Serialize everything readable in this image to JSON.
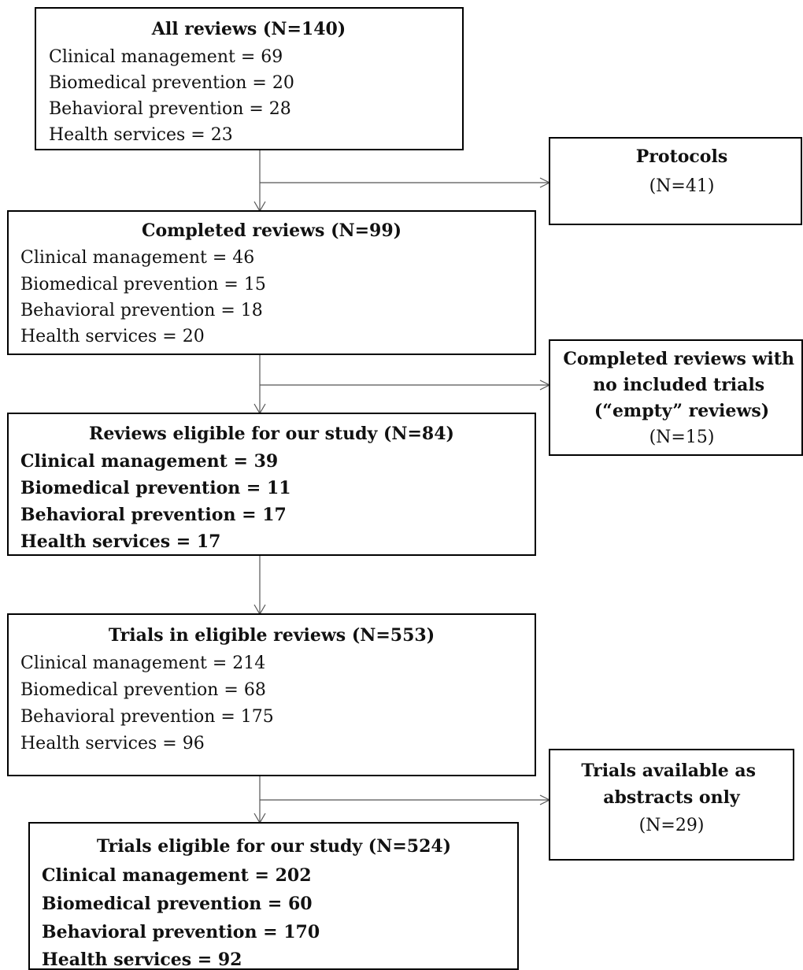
{
  "nodes": [
    {
      "title": "All reviews (N=140)",
      "lines": [
        "Clinical management = 69",
        "Biomedical prevention = 20",
        "Behavioral prevention = 28",
        "Health services = 23"
      ]
    },
    {
      "title": "Protocols",
      "lines": [
        "(N=41)"
      ]
    },
    {
      "title": "Completed reviews (N=99)",
      "lines": [
        "Clinical management = 46",
        "Biomedical prevention = 15",
        "Behavioral prevention = 18",
        "Health services = 20"
      ]
    },
    {
      "title": "Completed reviews with no included trials (“empty” reviews)",
      "lines": [
        "(N=15)"
      ]
    },
    {
      "title": "Reviews eligible for our study (N=84)",
      "lines": [
        "Clinical management = 39",
        "Biomedical prevention = 11",
        "Behavioral prevention = 17",
        "Health services = 17"
      ]
    },
    {
      "title": "Trials in eligible reviews (N=553)",
      "lines": [
        "Clinical management = 214",
        "Biomedical prevention = 68",
        "Behavioral prevention = 175",
        "Health services = 96"
      ]
    },
    {
      "title": "Trials available as abstracts only",
      "lines": [
        "(N=29)"
      ]
    },
    {
      "title": "Trials eligible for our study (N=524)",
      "lines": [
        "Clinical management = 202",
        "Biomedical prevention = 60",
        "Behavioral prevention = 170",
        "Health services = 92"
      ]
    }
  ]
}
